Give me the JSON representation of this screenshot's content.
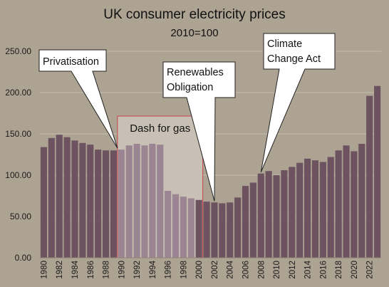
{
  "chart_data": {
    "type": "bar",
    "title": "UK consumer electricity prices",
    "subtitle": "2010=100",
    "xlabel": "",
    "ylabel": "",
    "ylim": [
      0,
      250
    ],
    "yticks": [
      "0.00",
      "50.00",
      "100.00",
      "150.00",
      "200.00",
      "250.00"
    ],
    "grid": true,
    "colors": {
      "bar": "#6d5260",
      "bar_highlight": "#9b8592",
      "background": "#ada393",
      "box_fill": "#c9c0b5",
      "box_border": "#c9454b"
    },
    "categories": [
      1980,
      1981,
      1982,
      1983,
      1984,
      1985,
      1986,
      1987,
      1988,
      1989,
      1990,
      1991,
      1992,
      1993,
      1994,
      1995,
      1996,
      1997,
      1998,
      1999,
      2000,
      2001,
      2002,
      2003,
      2004,
      2005,
      2006,
      2007,
      2008,
      2009,
      2010,
      2011,
      2012,
      2013,
      2014,
      2015,
      2016,
      2017,
      2018,
      2019,
      2020,
      2021,
      2022,
      2023
    ],
    "x_tick_labels": [
      "1980",
      "1982",
      "1984",
      "1986",
      "1988",
      "1990",
      "1992",
      "1994",
      "1996",
      "1998",
      "2000",
      "2002",
      "2004",
      "2006",
      "2008",
      "2010",
      "2012",
      "2014",
      "2016",
      "2018",
      "2020",
      "2022"
    ],
    "values": [
      134,
      145,
      149,
      146,
      142,
      139,
      137,
      131,
      130,
      130,
      131,
      136,
      138,
      136,
      138,
      137,
      81,
      77,
      74,
      72,
      70,
      68,
      67,
      66,
      67,
      73,
      87,
      91,
      102,
      105,
      100,
      106,
      110,
      115,
      120,
      118,
      116,
      122,
      130,
      136,
      129,
      138,
      196,
      208
    ],
    "annotations": [
      {
        "label": "Privatisation",
        "year": 1990
      },
      {
        "label": "Renewables Obligation",
        "lines": [
          "Renewables",
          "Obligation"
        ],
        "year": 2002
      },
      {
        "label": "Climate Change Act",
        "lines": [
          "Climate",
          "Change Act"
        ],
        "year": 2008
      }
    ],
    "highlight_region": {
      "label": "Dash for gas",
      "from_year": 1990,
      "to_year": 2000
    }
  }
}
